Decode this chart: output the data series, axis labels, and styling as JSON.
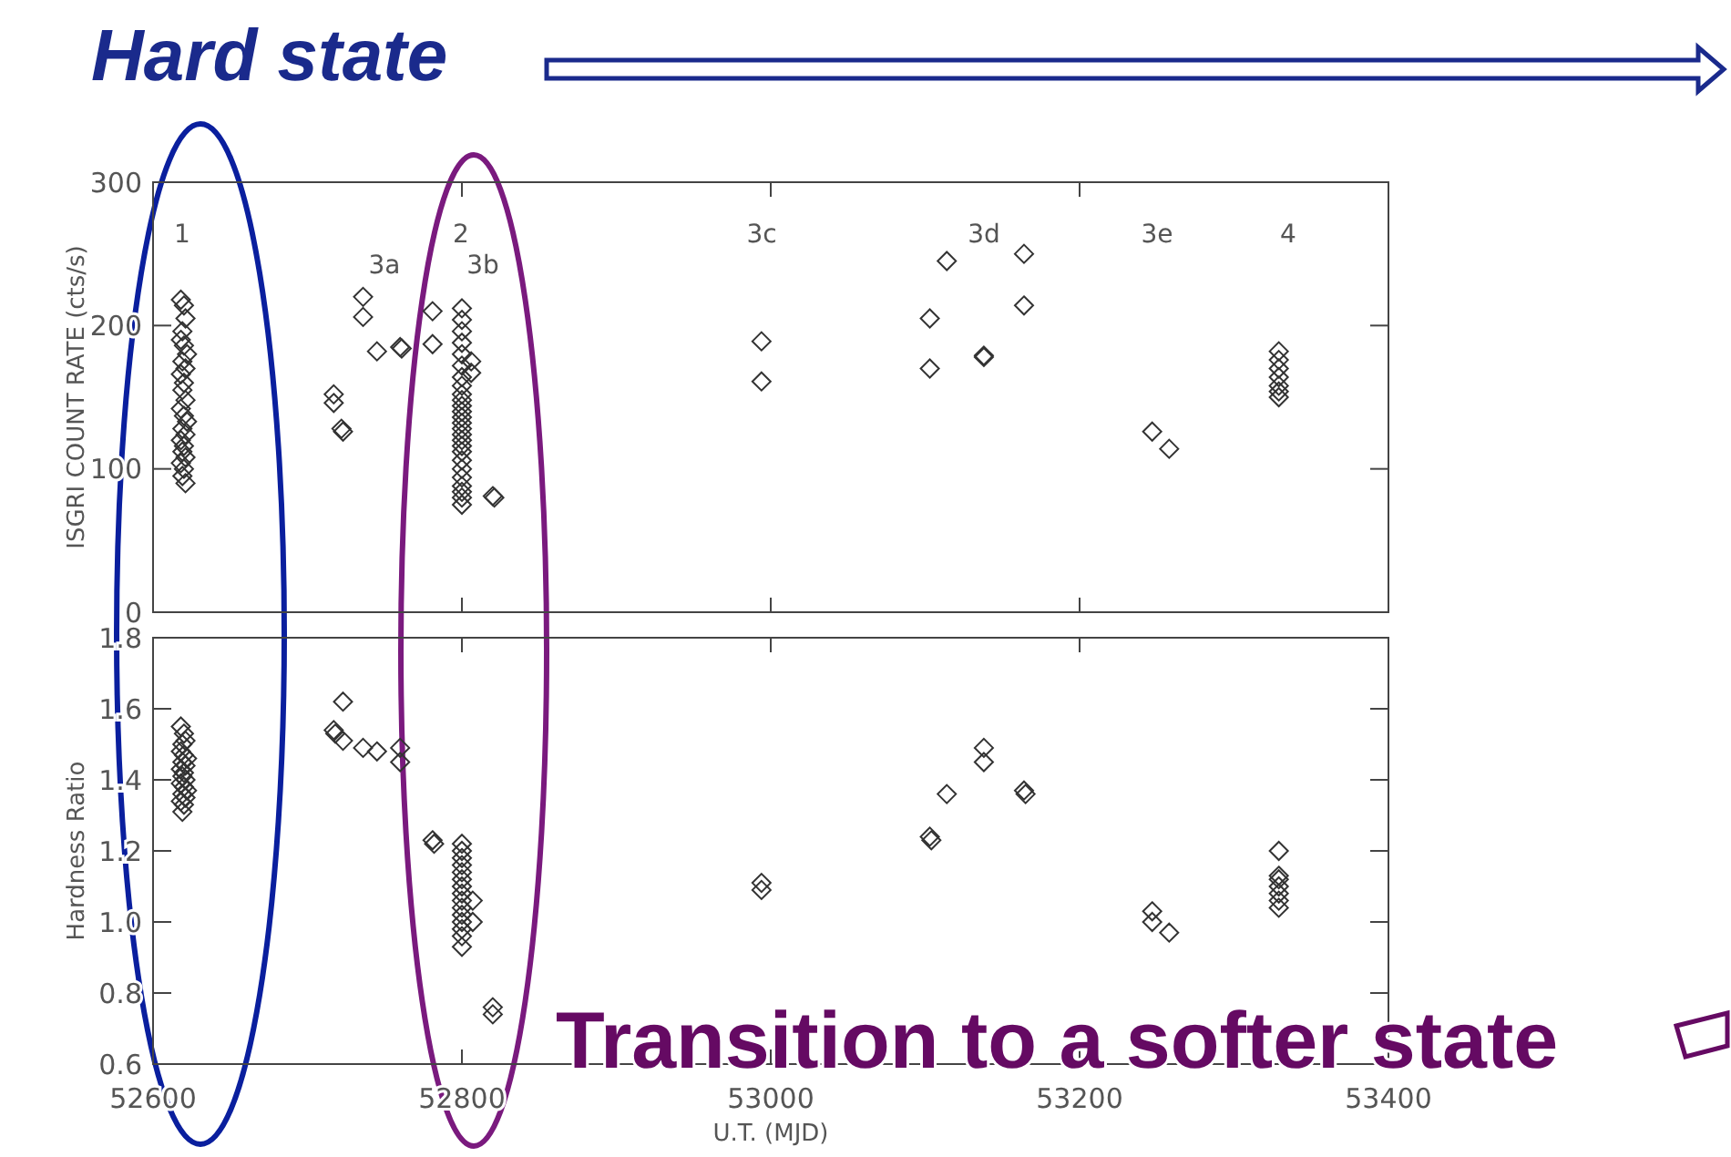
{
  "chart_data": [
    {
      "type": "scatter",
      "ylabel": "ISGRI COUNT RATE (cts/s)",
      "xlim": [
        52600,
        53400
      ],
      "xticks": [
        52600,
        52800,
        53000,
        53200,
        53400
      ],
      "ylim": [
        0,
        300
      ],
      "yticks": [
        0,
        100,
        200,
        300
      ],
      "tick_labels": "y",
      "marker": "diamond",
      "grid": false,
      "annotations": [
        "Hard state",
        "1",
        "3a",
        "2",
        "3b",
        "3c",
        "3d",
        "3e",
        "4"
      ],
      "series": [
        {
          "color": "#333333",
          "x": [
            52618,
            52620,
            52621,
            52619,
            52618,
            52620,
            52622,
            52619,
            52621,
            52618,
            52620,
            52619,
            52621,
            52618,
            52620,
            52622,
            52619,
            52621,
            52618,
            52620,
            52619,
            52621,
            52618,
            52620,
            52619,
            52621,
            52717,
            52717,
            52722,
            52723,
            52736,
            52736,
            52745,
            52760,
            52761,
            52781,
            52781,
            52800,
            52800,
            52800,
            52800,
            52800,
            52800,
            52800,
            52800,
            52800,
            52800,
            52800,
            52800,
            52800,
            52800,
            52800,
            52800,
            52800,
            52800,
            52800,
            52800,
            52800,
            52800,
            52800,
            52800,
            52800,
            52800,
            52806,
            52806,
            52820,
            52821,
            52994,
            52994,
            53103,
            53103,
            53114,
            53138,
            53138,
            53164,
            53164,
            53247,
            53258,
            53329,
            53329,
            53329,
            53329,
            53329,
            53329,
            53329
          ],
          "values": [
            218,
            214,
            205,
            196,
            190,
            186,
            180,
            175,
            170,
            166,
            160,
            155,
            148,
            142,
            137,
            133,
            128,
            124,
            120,
            116,
            112,
            108,
            104,
            100,
            95,
            90,
            152,
            146,
            128,
            126,
            220,
            206,
            182,
            185,
            184,
            210,
            187,
            212,
            204,
            196,
            188,
            180,
            172,
            164,
            158,
            152,
            148,
            144,
            140,
            136,
            132,
            128,
            124,
            120,
            116,
            112,
            106,
            100,
            94,
            88,
            84,
            80,
            75,
            175,
            167,
            81,
            80,
            189,
            161,
            205,
            170,
            245,
            179,
            178,
            250,
            214,
            126,
            114,
            182,
            176,
            170,
            164,
            158,
            154,
            150
          ]
        }
      ]
    },
    {
      "type": "scatter",
      "xlabel": "U.T. (MJD)",
      "ylabel": "Hardness Ratio",
      "xlim": [
        52600,
        53400
      ],
      "xticks": [
        52600,
        52800,
        53000,
        53200,
        53400
      ],
      "ylim": [
        0.6,
        1.8
      ],
      "yticks": [
        0.6,
        0.8,
        {
          "value": 1,
          "label": "1.0"
        },
        1.2,
        1.4,
        1.6,
        1.8
      ],
      "marker": "diamond",
      "grid": false,
      "annotations": [
        "Transition to a softer state"
      ],
      "series": [
        {
          "color": "#333333",
          "x": [
            52618,
            52620,
            52621,
            52619,
            52618,
            52620,
            52622,
            52619,
            52621,
            52618,
            52620,
            52619,
            52621,
            52618,
            52620,
            52622,
            52619,
            52621,
            52618,
            52620,
            52619,
            52723,
            52717,
            52718,
            52723,
            52736,
            52745,
            52760,
            52760,
            52781,
            52782,
            52800,
            52800,
            52800,
            52800,
            52800,
            52800,
            52800,
            52800,
            52800,
            52800,
            52800,
            52800,
            52800,
            52800,
            52800,
            52807,
            52807,
            52820,
            52820,
            52994,
            52994,
            53103,
            53104,
            53114,
            53138,
            53138,
            53164,
            53165,
            53247,
            53247,
            53258,
            53329,
            53329,
            53329,
            53329,
            53329,
            53329,
            53329
          ],
          "values": [
            1.55,
            1.53,
            1.51,
            1.5,
            1.48,
            1.47,
            1.46,
            1.45,
            1.44,
            1.43,
            1.42,
            1.41,
            1.4,
            1.39,
            1.38,
            1.37,
            1.36,
            1.35,
            1.34,
            1.33,
            1.31,
            1.62,
            1.54,
            1.53,
            1.51,
            1.49,
            1.48,
            1.49,
            1.45,
            1.23,
            1.22,
            1.22,
            1.2,
            1.18,
            1.16,
            1.14,
            1.12,
            1.1,
            1.08,
            1.06,
            1.04,
            1.02,
            1.0,
            0.98,
            0.96,
            0.93,
            1.06,
            1.0,
            0.76,
            0.74,
            1.11,
            1.09,
            1.24,
            1.23,
            1.36,
            1.49,
            1.45,
            1.37,
            1.36,
            1.03,
            1.0,
            0.97,
            1.2,
            1.13,
            1.12,
            1.1,
            1.08,
            1.06,
            1.04
          ]
        }
      ]
    }
  ]
}
